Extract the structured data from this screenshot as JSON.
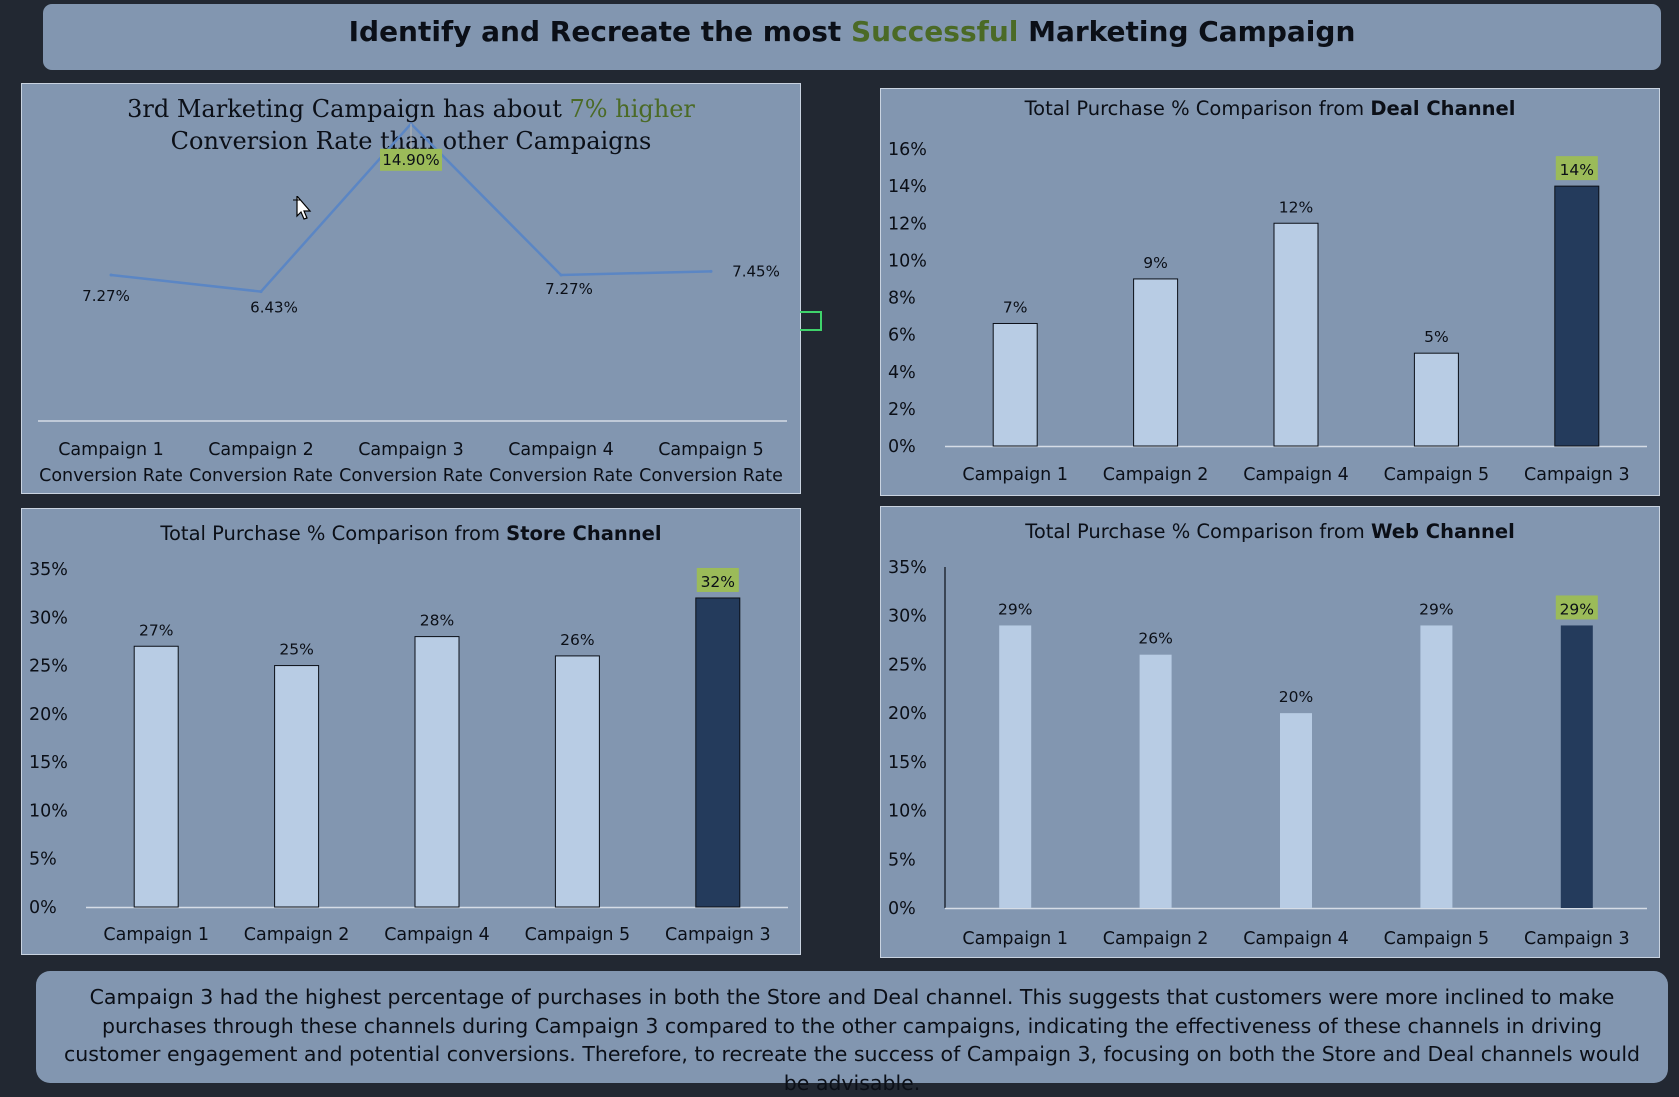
{
  "title": {
    "prefix": "Identify and Recreate the most ",
    "highlight": "Successful",
    "suffix": " Marketing Campaign"
  },
  "summary": "Campaign 3 had the highest percentage of purchases in both the Store and Deal channel. This suggests that customers were more inclined to make purchases through these channels during Campaign 3 compared to the other campaigns, indicating the effectiveness of these channels in driving customer engagement and potential conversions. Therefore, to recreate the success of Campaign 3, focusing on both the Store and Deal channels would be advisable.",
  "colors": {
    "panel": "#8296b0",
    "background": "#222832",
    "bar_light": "#b8cce4",
    "bar_highlight": "#243b5c",
    "line": "#5b86c4",
    "label_highlight": "#9bbb59",
    "accent_text": "#4b6a26"
  },
  "chart_data": [
    {
      "id": "conversion",
      "type": "line",
      "title_line1_prefix": "3rd Marketing Campaign has about ",
      "title_line1_highlight": "7% higher",
      "title_line2": "Conversion Rate than other Campaigns",
      "categories": [
        [
          "Campaign 1",
          "Conversion Rate"
        ],
        [
          "Campaign 2",
          "Conversion Rate"
        ],
        [
          "Campaign 3",
          "Conversion Rate"
        ],
        [
          "Campaign 4",
          "Conversion Rate"
        ],
        [
          "Campaign 5",
          "Conversion Rate"
        ]
      ],
      "values": [
        7.27,
        6.43,
        14.9,
        7.27,
        7.45
      ],
      "labels": [
        "7.27%",
        "6.43%",
        "14.90%",
        "7.27%",
        "7.45%"
      ],
      "highlight_index": 2,
      "ylim": [
        0,
        16
      ],
      "grid": false
    },
    {
      "id": "deal",
      "type": "bar",
      "title_prefix": "Total Purchase % Comparison from ",
      "title_bold": "Deal Channel",
      "categories": [
        "Campaign 1",
        "Campaign 2",
        "Campaign 4",
        "Campaign 5",
        "Campaign 3"
      ],
      "values": [
        6.6,
        9,
        12,
        5,
        14
      ],
      "labels": [
        "7%",
        "9%",
        "12%",
        "5%",
        "14%"
      ],
      "yticks": [
        "0%",
        "2%",
        "4%",
        "6%",
        "8%",
        "10%",
        "12%",
        "14%",
        "16%"
      ],
      "ylim": [
        0,
        16
      ],
      "highlight_index": 4,
      "grid": false
    },
    {
      "id": "store",
      "type": "bar",
      "title_prefix": "Total Purchase % Comparison from ",
      "title_bold": "Store Channel",
      "categories": [
        "Campaign 1",
        "Campaign 2",
        "Campaign 4",
        "Campaign 5",
        "Campaign 3"
      ],
      "values": [
        27,
        25,
        28,
        26,
        32
      ],
      "labels": [
        "27%",
        "25%",
        "28%",
        "26%",
        "32%"
      ],
      "yticks": [
        "0%",
        "5%",
        "10%",
        "15%",
        "20%",
        "25%",
        "30%",
        "35%"
      ],
      "ylim": [
        0,
        35
      ],
      "highlight_index": 4,
      "grid": false
    },
    {
      "id": "web",
      "type": "bar",
      "title_prefix": "Total Purchase % Comparison from ",
      "title_bold": "Web Channel",
      "categories": [
        "Campaign 1",
        "Campaign 2",
        "Campaign 4",
        "Campaign 5",
        "Campaign 3"
      ],
      "values": [
        29,
        26,
        20,
        29,
        29
      ],
      "labels": [
        "29%",
        "26%",
        "20%",
        "29%",
        "29%"
      ],
      "yticks": [
        "0%",
        "5%",
        "10%",
        "15%",
        "20%",
        "25%",
        "30%",
        "35%"
      ],
      "ylim": [
        0,
        35
      ],
      "highlight_index": 4,
      "grid": false
    }
  ]
}
